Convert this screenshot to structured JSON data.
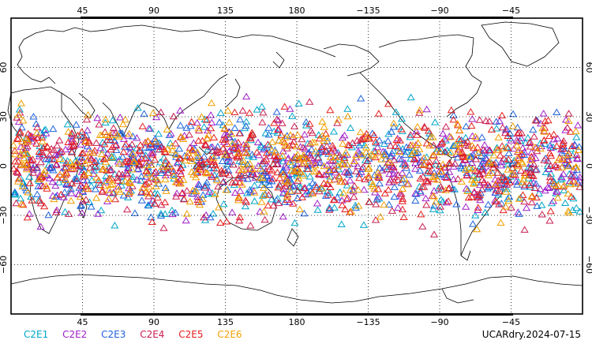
{
  "map": {
    "x_labels": [
      "45",
      "90",
      "135",
      "180",
      "−135",
      "−90",
      "−45"
    ],
    "y_labels": [
      "60",
      "30",
      "0",
      "−30",
      "−60"
    ],
    "lon_ticks": [
      45,
      90,
      135,
      180,
      225,
      270,
      315
    ],
    "lat_ticks": [
      60,
      30,
      0,
      -30,
      -60
    ],
    "lon_range": [
      0,
      360
    ],
    "lat_range": [
      -90,
      90
    ],
    "grid": true,
    "marker": "open-triangle",
    "coverage_lat_range": [
      -45,
      45
    ]
  },
  "legend": {
    "items": [
      {
        "label": "C2E1",
        "color": "#00a6c8"
      },
      {
        "label": "C2E2",
        "color": "#a020c8"
      },
      {
        "label": "C2E3",
        "color": "#1e64dc"
      },
      {
        "label": "C2E4",
        "color": "#c81e50"
      },
      {
        "label": "C2E5",
        "color": "#e61e1e"
      },
      {
        "label": "C2E6",
        "color": "#f0a000"
      }
    ]
  },
  "caption": "UCARdry.2024-07-15"
}
